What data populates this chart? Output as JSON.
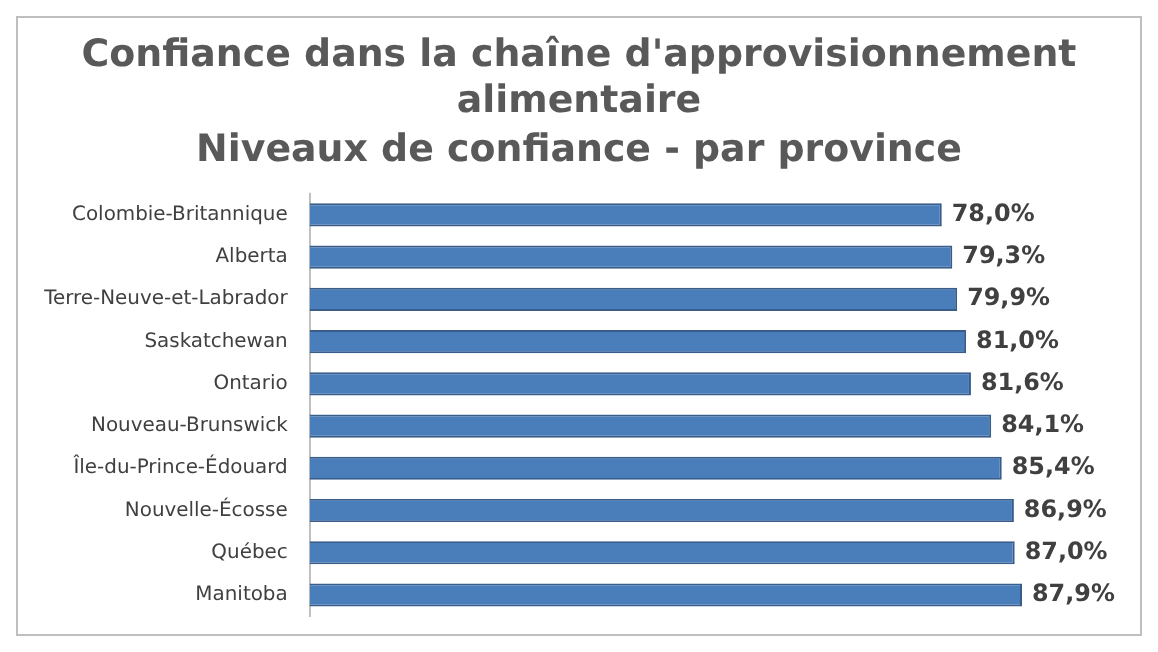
{
  "chart_data": {
    "type": "bar",
    "orientation": "horizontal",
    "title": "Confiance dans la chaîne d'approvisionnement alimentaire",
    "subtitle": "Niveaux de confiance - par province",
    "categories": [
      "Colombie-Britannique",
      "Alberta",
      "Terre-Neuve-et-Labrador",
      "Saskatchewan",
      "Ontario",
      "Nouveau-Brunswick",
      "Île-du-Prince-Édouard",
      "Nouvelle-Écosse",
      "Québec",
      "Manitoba"
    ],
    "values": [
      78.0,
      79.3,
      79.9,
      81.0,
      81.6,
      84.1,
      85.4,
      86.9,
      87.0,
      87.9
    ],
    "value_labels": [
      "78,0%",
      "79,3%",
      "79,9%",
      "81,0%",
      "81,6%",
      "84,1%",
      "85,4%",
      "86,9%",
      "87,0%",
      "87,9%"
    ],
    "color": "#4a7ebb",
    "tick_labels": "y",
    "grid": false,
    "legend": false
  }
}
